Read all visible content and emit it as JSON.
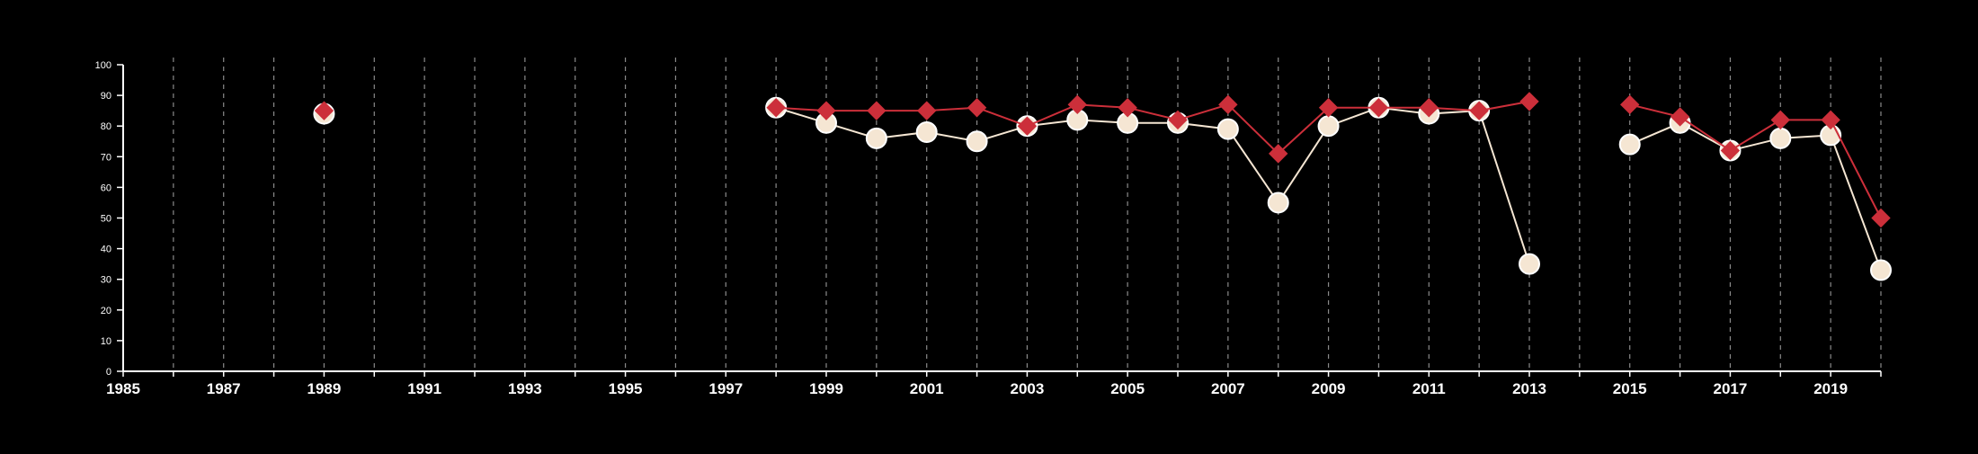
{
  "chart_data": {
    "type": "line",
    "title": "",
    "xlabel": "",
    "ylabel": "",
    "xlim": [
      1985,
      2020
    ],
    "ylim": [
      0,
      100
    ],
    "grid": {
      "vertical": true,
      "horizontal": false,
      "style": "dashed"
    },
    "x_ticks": [
      1985,
      1987,
      1989,
      1991,
      1993,
      1995,
      1997,
      1999,
      2001,
      2003,
      2005,
      2007,
      2009,
      2011,
      2013,
      2015,
      2017,
      2019
    ],
    "y_ticks": [
      0,
      10,
      20,
      30,
      40,
      50,
      60,
      70,
      80,
      90,
      100
    ],
    "series": [
      {
        "marker": "diamond",
        "color": "#cc2f3a",
        "points": [
          {
            "x": 1989,
            "y": 85
          },
          {
            "x": 1998,
            "y": 86
          },
          {
            "x": 1999,
            "y": 85
          },
          {
            "x": 2000,
            "y": 85
          },
          {
            "x": 2001,
            "y": 85
          },
          {
            "x": 2002,
            "y": 86
          },
          {
            "x": 2003,
            "y": 80
          },
          {
            "x": 2004,
            "y": 87
          },
          {
            "x": 2005,
            "y": 86
          },
          {
            "x": 2006,
            "y": 82
          },
          {
            "x": 2007,
            "y": 87
          },
          {
            "x": 2008,
            "y": 71
          },
          {
            "x": 2009,
            "y": 86
          },
          {
            "x": 2010,
            "y": 86
          },
          {
            "x": 2011,
            "y": 86
          },
          {
            "x": 2012,
            "y": 85
          },
          {
            "x": 2013,
            "y": 88
          },
          {
            "x": 2015,
            "y": 87
          },
          {
            "x": 2016,
            "y": 83
          },
          {
            "x": 2017,
            "y": 72
          },
          {
            "x": 2018,
            "y": 82
          },
          {
            "x": 2019,
            "y": 82
          },
          {
            "x": 2020,
            "y": 50
          }
        ]
      },
      {
        "marker": "circle",
        "color": "#f5e6d3",
        "points": [
          {
            "x": 1989,
            "y": 84
          },
          {
            "x": 1998,
            "y": 86
          },
          {
            "x": 1999,
            "y": 81
          },
          {
            "x": 2000,
            "y": 76
          },
          {
            "x": 2001,
            "y": 78
          },
          {
            "x": 2002,
            "y": 75
          },
          {
            "x": 2003,
            "y": 80
          },
          {
            "x": 2004,
            "y": 82
          },
          {
            "x": 2005,
            "y": 81
          },
          {
            "x": 2006,
            "y": 81
          },
          {
            "x": 2007,
            "y": 79
          },
          {
            "x": 2008,
            "y": 55
          },
          {
            "x": 2009,
            "y": 80
          },
          {
            "x": 2010,
            "y": 86
          },
          {
            "x": 2011,
            "y": 84
          },
          {
            "x": 2012,
            "y": 85
          },
          {
            "x": 2013,
            "y": 35
          },
          {
            "x": 2015,
            "y": 74
          },
          {
            "x": 2016,
            "y": 81
          },
          {
            "x": 2017,
            "y": 72
          },
          {
            "x": 2018,
            "y": 76
          },
          {
            "x": 2019,
            "y": 77
          },
          {
            "x": 2020,
            "y": 33
          }
        ]
      }
    ]
  }
}
